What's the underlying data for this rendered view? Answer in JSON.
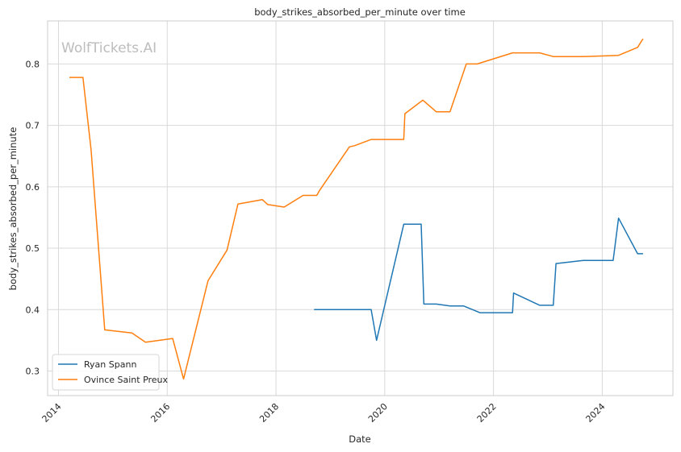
{
  "chart_data": {
    "type": "line",
    "title": "body_strikes_absorbed_per_minute over time",
    "xlabel": "Date",
    "ylabel": "body_strikes_absorbed_per_minute",
    "watermark": "WolfTickets.AI",
    "xlim": [
      2013.8,
      2025.3
    ],
    "ylim": [
      0.26,
      0.87
    ],
    "x_ticks": [
      2014,
      2016,
      2018,
      2020,
      2022,
      2024
    ],
    "x_tick_labels": [
      "2014",
      "2016",
      "2018",
      "2020",
      "2022",
      "2024"
    ],
    "y_ticks": [
      0.3,
      0.4,
      0.5,
      0.6,
      0.7,
      0.8
    ],
    "y_tick_labels": [
      "0.3",
      "0.4",
      "0.5",
      "0.6",
      "0.7",
      "0.8"
    ],
    "grid": true,
    "legend_position": "bottom-left",
    "series": [
      {
        "name": "Ryan Spann",
        "color": "#1f77b4",
        "x": [
          2018.7,
          2019.75,
          2019.85,
          2020.35,
          2020.67,
          2020.72,
          2020.95,
          2021.2,
          2021.45,
          2021.75,
          2022.35,
          2022.37,
          2022.85,
          2023.1,
          2023.15,
          2023.65,
          2024.2,
          2024.3,
          2024.65,
          2024.75
        ],
        "y": [
          0.4,
          0.4,
          0.35,
          0.539,
          0.539,
          0.409,
          0.409,
          0.406,
          0.406,
          0.395,
          0.395,
          0.427,
          0.407,
          0.407,
          0.475,
          0.48,
          0.48,
          0.549,
          0.491,
          0.491
        ]
      },
      {
        "name": "Ovince Saint Preux",
        "color": "#ff7f0e",
        "x": [
          2014.2,
          2014.45,
          2014.6,
          2014.85,
          2015.35,
          2015.6,
          2016.1,
          2016.3,
          2016.75,
          2017.1,
          2017.3,
          2017.75,
          2017.85,
          2018.15,
          2018.5,
          2018.75,
          2018.8,
          2019.35,
          2019.45,
          2019.75,
          2020.35,
          2020.37,
          2020.7,
          2020.95,
          2021.2,
          2021.5,
          2021.7,
          2022.35,
          2022.85,
          2023.1,
          2023.65,
          2024.3,
          2024.65,
          2024.75
        ],
        "y": [
          0.778,
          0.778,
          0.66,
          0.367,
          0.362,
          0.347,
          0.353,
          0.287,
          0.447,
          0.497,
          0.572,
          0.579,
          0.571,
          0.567,
          0.586,
          0.586,
          0.594,
          0.665,
          0.667,
          0.677,
          0.677,
          0.719,
          0.741,
          0.722,
          0.722,
          0.8,
          0.8,
          0.818,
          0.818,
          0.812,
          0.812,
          0.814,
          0.827,
          0.841
        ]
      }
    ]
  }
}
